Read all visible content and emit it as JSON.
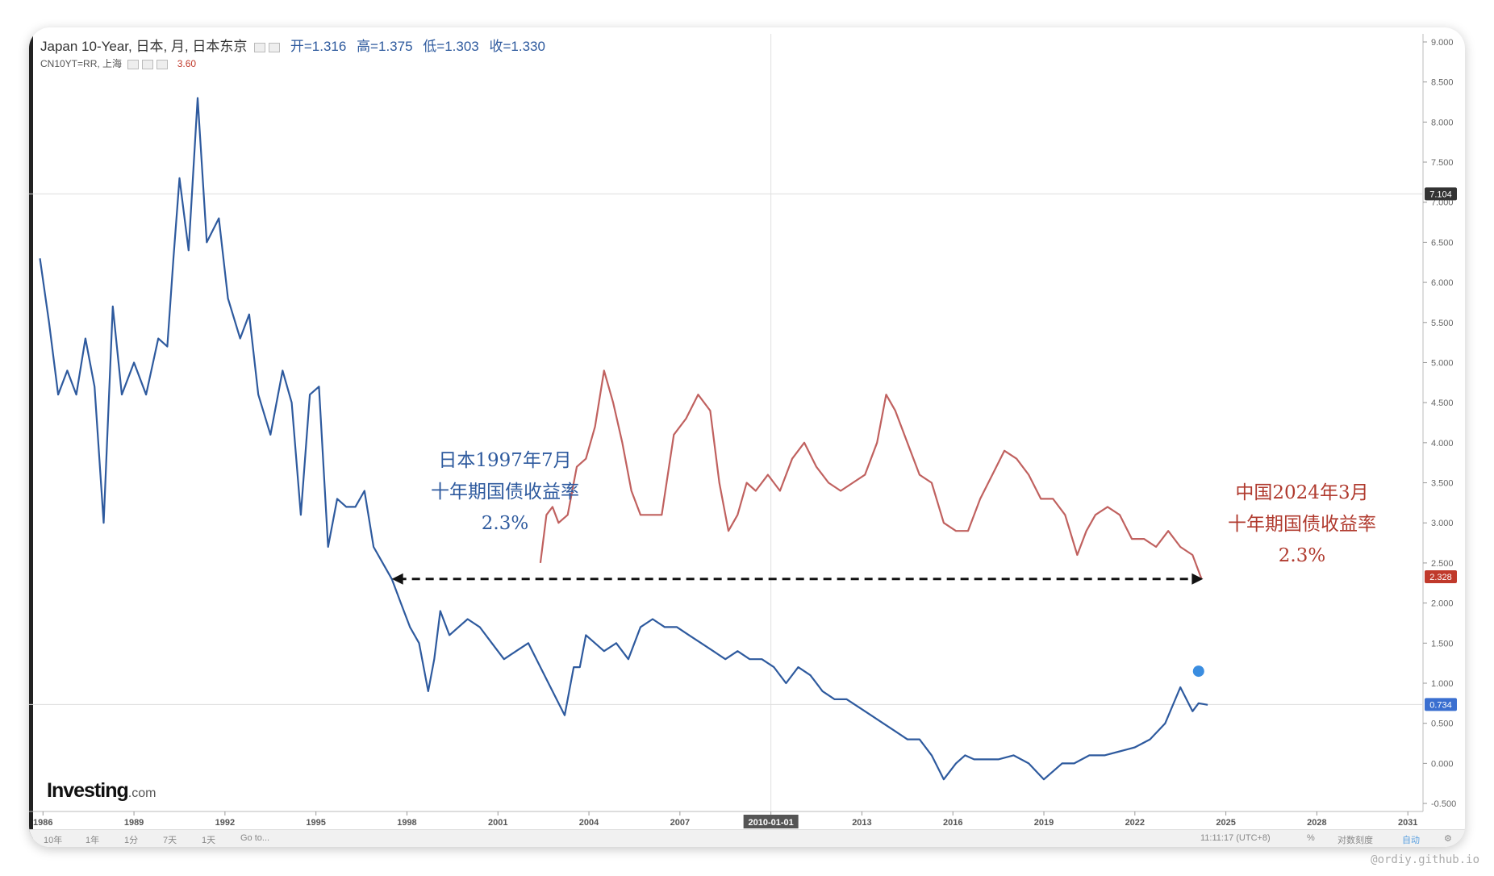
{
  "legend": {
    "line1_name": "Japan 10-Year, 日本, 月, 日本东京",
    "open": "开=1.316",
    "high": "高=1.375",
    "low": "低=1.303",
    "close": "收=1.330",
    "line2_name": "CN10YT=RR, 上海",
    "line2_value": "3.60"
  },
  "logo": {
    "main": "Investing",
    "suffix": ".com"
  },
  "annotations": {
    "japan": [
      "日本1997年7月",
      "十年期国债收益率",
      "2.3%"
    ],
    "china": [
      "中国2024年3月",
      "十年期国债收益率",
      "2.3%"
    ]
  },
  "toolbar": {
    "ranges": [
      "10年",
      "1年",
      "1分",
      "7天",
      "1天"
    ],
    "goto": "Go to...",
    "time": "11:11:17 (UTC+8)",
    "percent": "%",
    "log_scale": "对数刻度",
    "auto": "自动"
  },
  "watermark": "@ordiy.github.io",
  "colors": {
    "japan": "#2e5a9e",
    "china": "#c0615f",
    "china_badge": "#c0392b",
    "last_badge": "#333333",
    "arrow": "#111111"
  },
  "chart_data": {
    "type": "line",
    "x_tick_labels": [
      "1986",
      "1989",
      "1992",
      "1995",
      "1998",
      "2001",
      "2004",
      "2007",
      "2010-01-01",
      "2013",
      "2016",
      "2019",
      "2022",
      "2025",
      "2028",
      "2031"
    ],
    "y_tick_labels": [
      "9.000",
      "8.500",
      "8.000",
      "7.500",
      "7.000",
      "6.500",
      "6.000",
      "5.500",
      "5.000",
      "4.500",
      "4.000",
      "3.500",
      "3.000",
      "2.500",
      "2.000",
      "1.500",
      "1.000",
      "0.500",
      "0.000",
      "-0.500"
    ],
    "xlim": [
      1985.7,
      2031.5
    ],
    "ylim": [
      -0.6,
      9.1
    ],
    "grid": false,
    "price_badges": [
      {
        "label": "7.104",
        "value": 7.104,
        "color": "#333333"
      },
      {
        "label": "2.328",
        "value": 2.328,
        "color": "#c0392b"
      },
      {
        "label": "0.734",
        "value": 0.734,
        "color": "#3a6fd0"
      }
    ],
    "dashed_arrow": {
      "from": [
        1997.5,
        2.3
      ],
      "to": [
        2024.25,
        2.3
      ]
    },
    "series": [
      {
        "color": "#2e5a9e",
        "x": [
          1985.9,
          1986.2,
          1986.5,
          1986.8,
          1987.1,
          1987.4,
          1987.7,
          1988.0,
          1988.3,
          1988.6,
          1989.0,
          1989.4,
          1989.8,
          1990.1,
          1990.3,
          1990.5,
          1990.8,
          1991.1,
          1991.4,
          1991.8,
          1992.1,
          1992.5,
          1992.8,
          1993.1,
          1993.5,
          1993.9,
          1994.2,
          1994.5,
          1994.8,
          1995.1,
          1995.4,
          1995.7,
          1996.0,
          1996.3,
          1996.6,
          1996.9,
          1997.2,
          1997.5,
          1997.8,
          1998.1,
          1998.4,
          1998.7,
          1998.9,
          1999.1,
          1999.4,
          1999.7,
          2000.0,
          2000.4,
          2000.8,
          2001.2,
          2001.6,
          2002.0,
          2002.4,
          2002.8,
          2003.2,
          2003.5,
          2003.7,
          2003.9,
          2004.2,
          2004.5,
          2004.9,
          2005.3,
          2005.7,
          2006.1,
          2006.5,
          2006.9,
          2007.3,
          2007.7,
          2008.1,
          2008.5,
          2008.9,
          2009.3,
          2009.7,
          2010.1,
          2010.5,
          2010.9,
          2011.3,
          2011.7,
          2012.1,
          2012.5,
          2012.9,
          2013.3,
          2013.7,
          2014.1,
          2014.5,
          2014.9,
          2015.3,
          2015.7,
          2016.1,
          2016.4,
          2016.7,
          2017.0,
          2017.5,
          2018.0,
          2018.5,
          2019.0,
          2019.3,
          2019.6,
          2020.0,
          2020.5,
          2021.0,
          2021.5,
          2022.0,
          2022.5,
          2023.0,
          2023.5,
          2023.9,
          2024.1,
          2024.4
        ],
        "y": [
          6.3,
          5.5,
          4.6,
          4.9,
          4.6,
          5.3,
          4.7,
          3.0,
          5.7,
          4.6,
          5.0,
          4.6,
          5.3,
          5.2,
          6.3,
          7.3,
          6.4,
          8.3,
          6.5,
          6.8,
          5.8,
          5.3,
          5.6,
          4.6,
          4.1,
          4.9,
          4.5,
          3.1,
          4.6,
          4.7,
          2.7,
          3.3,
          3.2,
          3.2,
          3.4,
          2.7,
          2.5,
          2.3,
          2.0,
          1.7,
          1.5,
          0.9,
          1.3,
          1.9,
          1.6,
          1.7,
          1.8,
          1.7,
          1.5,
          1.3,
          1.4,
          1.5,
          1.2,
          0.9,
          0.6,
          1.2,
          1.2,
          1.6,
          1.5,
          1.4,
          1.5,
          1.3,
          1.7,
          1.8,
          1.7,
          1.7,
          1.6,
          1.5,
          1.4,
          1.3,
          1.4,
          1.3,
          1.3,
          1.2,
          1.0,
          1.2,
          1.1,
          0.9,
          0.8,
          0.8,
          0.7,
          0.6,
          0.5,
          0.4,
          0.3,
          0.3,
          0.1,
          -0.2,
          0.0,
          0.1,
          0.05,
          0.05,
          0.05,
          0.1,
          0.0,
          -0.2,
          -0.1,
          0.0,
          0.0,
          0.1,
          0.1,
          0.15,
          0.2,
          0.3,
          0.5,
          0.95,
          0.65,
          0.75,
          0.73
        ]
      },
      {
        "color": "#c0615f",
        "x": [
          2002.4,
          2002.6,
          2002.8,
          2003.0,
          2003.3,
          2003.6,
          2003.9,
          2004.2,
          2004.5,
          2004.8,
          2005.1,
          2005.4,
          2005.7,
          2006.0,
          2006.4,
          2006.8,
          2007.2,
          2007.6,
          2008.0,
          2008.3,
          2008.6,
          2008.9,
          2009.2,
          2009.5,
          2009.9,
          2010.3,
          2010.7,
          2011.1,
          2011.5,
          2011.9,
          2012.3,
          2012.7,
          2013.1,
          2013.5,
          2013.8,
          2014.1,
          2014.5,
          2014.9,
          2015.3,
          2015.7,
          2016.1,
          2016.5,
          2016.9,
          2017.3,
          2017.7,
          2018.1,
          2018.5,
          2018.9,
          2019.3,
          2019.7,
          2020.1,
          2020.4,
          2020.7,
          2021.1,
          2021.5,
          2021.9,
          2022.3,
          2022.7,
          2023.1,
          2023.5,
          2023.9,
          2024.2
        ],
        "y": [
          2.5,
          3.1,
          3.2,
          3.0,
          3.1,
          3.7,
          3.8,
          4.2,
          4.9,
          4.5,
          4.0,
          3.4,
          3.1,
          3.1,
          3.1,
          4.1,
          4.3,
          4.6,
          4.4,
          3.5,
          2.9,
          3.1,
          3.5,
          3.4,
          3.6,
          3.4,
          3.8,
          4.0,
          3.7,
          3.5,
          3.4,
          3.5,
          3.6,
          4.0,
          4.6,
          4.4,
          4.0,
          3.6,
          3.5,
          3.0,
          2.9,
          2.9,
          3.3,
          3.6,
          3.9,
          3.8,
          3.6,
          3.3,
          3.3,
          3.1,
          2.6,
          2.9,
          3.1,
          3.2,
          3.1,
          2.8,
          2.8,
          2.7,
          2.9,
          2.7,
          2.6,
          2.3
        ]
      }
    ]
  }
}
